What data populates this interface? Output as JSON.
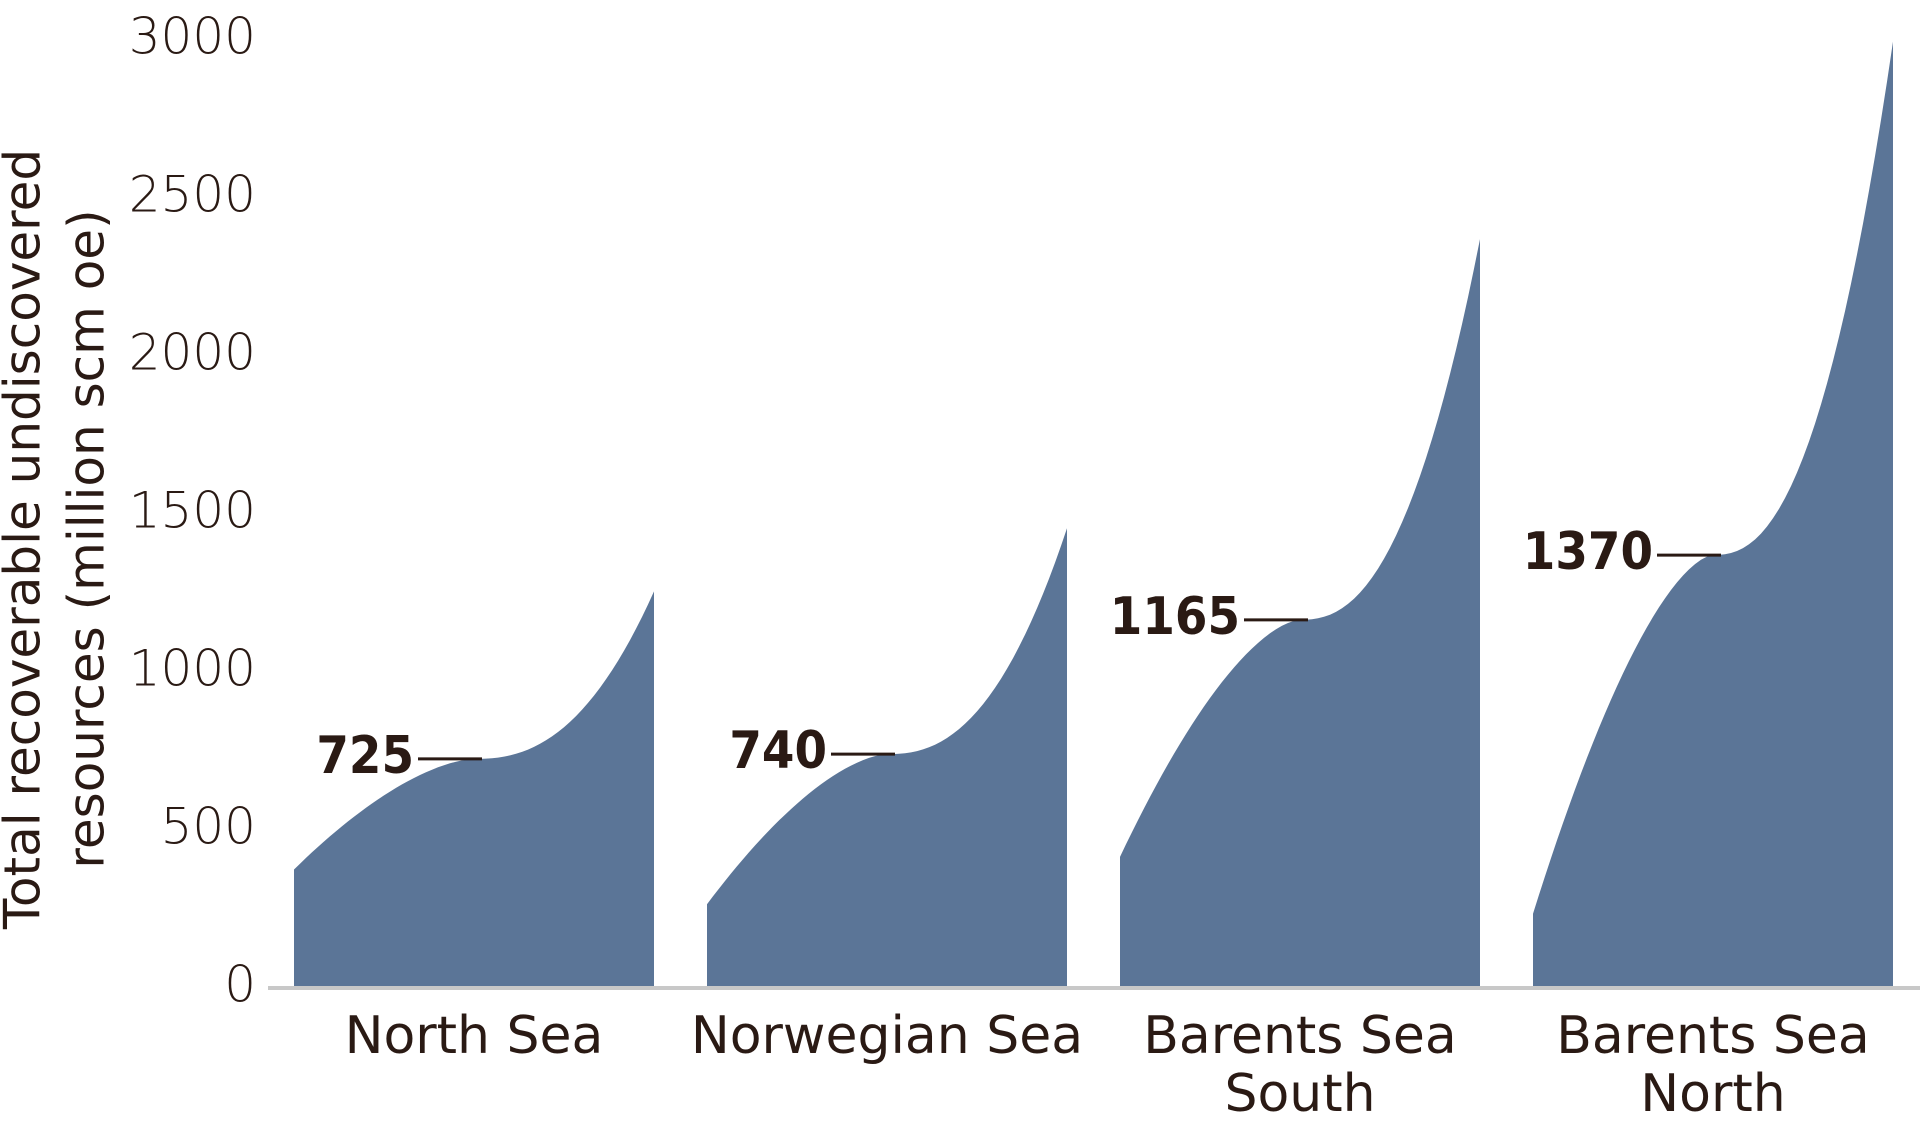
{
  "chart_data": {
    "type": "area",
    "ylabel_lines": [
      "Total recoverable undiscovered",
      "resources (million scm oe)"
    ],
    "ylim": [
      0,
      3000
    ],
    "yticks": [
      0,
      500,
      1000,
      1500,
      2000,
      2500,
      3000
    ],
    "grid": false,
    "colors": {
      "fill": "#5b7597",
      "axis": "#c8c8c8",
      "text": "#2a1a14"
    },
    "series": [
      {
        "category": [
          "North Sea"
        ],
        "low": 375,
        "high": 1255,
        "expected": 725,
        "expected_label": "725"
      },
      {
        "category": [
          "Norwegian Sea"
        ],
        "low": 265,
        "high": 1455,
        "expected": 740,
        "expected_label": "740"
      },
      {
        "category": [
          "Barents Sea",
          "South"
        ],
        "low": 415,
        "high": 2370,
        "expected": 1165,
        "expected_label": "1165"
      },
      {
        "category": [
          "Barents Sea",
          "North"
        ],
        "low": 235,
        "high": 2995,
        "expected": 1370,
        "expected_label": "1370"
      }
    ]
  }
}
